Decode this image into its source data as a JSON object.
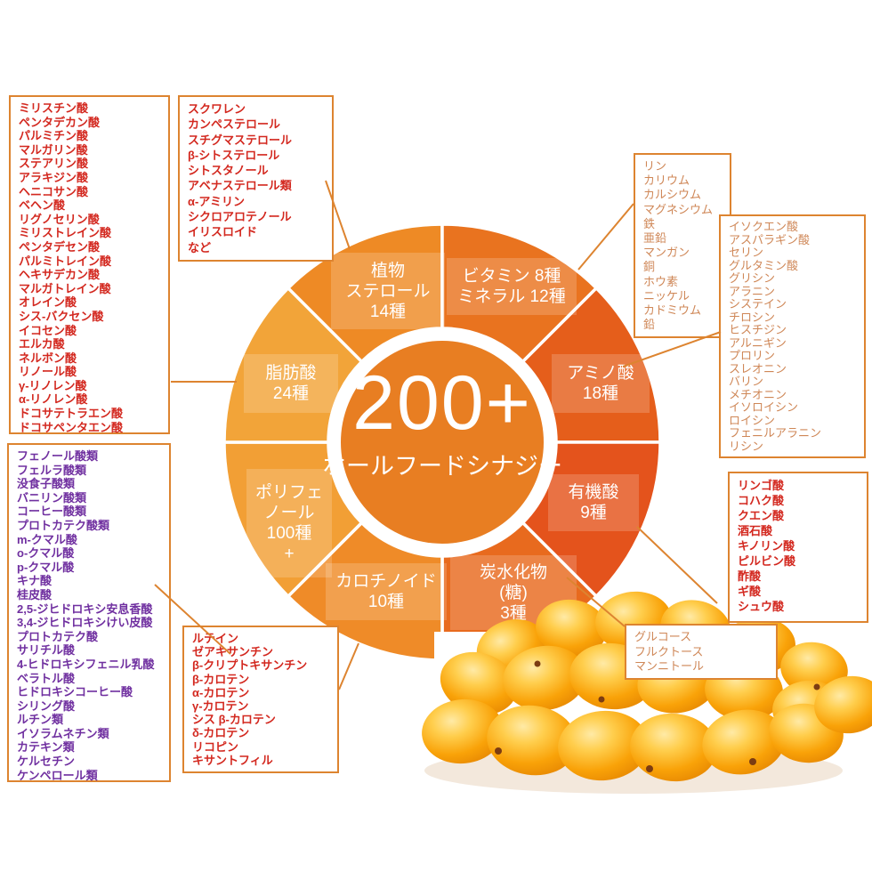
{
  "center": {
    "number": "200+",
    "subtitle": "ホールフードシナジー"
  },
  "wheel": {
    "center_color": "#e87e22",
    "segments": [
      {
        "id": "plant-sterols",
        "label": "植物\nステロール\n14種",
        "color": "#ee8a25"
      },
      {
        "id": "vitamins-minerals",
        "label": "ビタミン 8種\nミネラル 12種",
        "color": "#e9731f"
      },
      {
        "id": "amino-acids",
        "label": "アミノ酸\n18種",
        "color": "#e55e1b"
      },
      {
        "id": "organic-acids",
        "label": "有機酸\n9種",
        "color": "#e4531c"
      },
      {
        "id": "carbohydrates",
        "label": "炭水化物\n(糖)\n3種",
        "color": "#e86a1e"
      },
      {
        "id": "carotenoids",
        "label": "カロチノイド\n10種",
        "color": "#ef8b28"
      },
      {
        "id": "polyphenols",
        "label": "ポリフェ\nノール\n100種\n+",
        "color": "#f29f35"
      },
      {
        "id": "fatty-acids",
        "label": "脂肪酸\n24種",
        "color": "#f2a439"
      }
    ]
  },
  "boxes": {
    "fatty_acids": {
      "items": [
        "ミリスチン酸",
        "ペンタデカン酸",
        "パルミチン酸",
        "マルガリン酸",
        "ステアリン酸",
        "アラキジン酸",
        "ヘニコサン酸",
        "ベヘン酸",
        "リグノセリン酸",
        "ミリストレイン酸",
        "ペンタデセン酸",
        "パルミトレイン酸",
        "ヘキサデカン酸",
        "マルガトレイン酸",
        "オレイン酸",
        "シス-バクセン酸",
        "イコセン酸",
        "エルカ酸",
        "ネルボン酸",
        "リノール酸",
        "γ-リノレン酸",
        "α-リノレン酸",
        "ドコサテトラエン酸",
        "ドコサペンタエン酸"
      ]
    },
    "plant_sterols": {
      "items": [
        "スクワレン",
        "カンペステロール",
        "スチグマステロール",
        "β-シトステロール",
        "シトスタノール",
        "アベナステロール類",
        "α-アミリン",
        "シクロアロテノール",
        "イリスロイド",
        "など"
      ]
    },
    "minerals": {
      "items": [
        "リン",
        "カリウム",
        "カルシウム",
        "マグネシウム",
        "鉄",
        "亜鉛",
        "マンガン",
        "銅",
        "ホウ素",
        "ニッケル",
        "カドミウム",
        "鉛"
      ]
    },
    "amino_acids": {
      "items": [
        "イソクエン酸",
        "アスパラギン酸",
        "セリン",
        "グルタミン酸",
        "グリシン",
        "アラニン",
        "システイン",
        "チロシン",
        "ヒスチジン",
        "アルニギン",
        "プロリン",
        "スレオニン",
        "バリン",
        "メチオニン",
        "イソロイシン",
        "ロイシン",
        "フェニルアラニン",
        "リシン"
      ]
    },
    "organic_acids": {
      "items": [
        "リンゴ酸",
        "コハク酸",
        "クエン酸",
        "酒石酸",
        "キノリン酸",
        "ピルビン酸",
        "酢酸",
        "ギ酸",
        "シュウ酸"
      ]
    },
    "sugars": {
      "items": [
        "グルコース",
        "フルクトース",
        "マンニトール"
      ]
    },
    "polyphenols": {
      "items": [
        "フェノール酸類",
        "フェルラ酸類",
        "没食子酸類",
        "バニリン酸類",
        "コーヒー酸類",
        "プロトカテク酸類",
        "m-クマル酸",
        "o-クマル酸",
        "p-クマル酸",
        "キナ酸",
        "桂皮酸",
        "2,5-ジヒドロキシ安息香酸",
        "3,4-ジヒドロキシけい皮酸",
        "プロトカテク酸",
        "サリチル酸",
        "4-ヒドロキシフェニル乳酸",
        "ベラトル酸",
        "ヒドロキシコーヒー酸",
        "シリング酸",
        "ルチン類",
        "イソラムネチン類",
        "カテキン類",
        "ケルセチン",
        "ケンペロール類"
      ]
    },
    "carotenoids": {
      "items": [
        "ルテイン",
        "ゼアキサンチン",
        "β-クリプトキサンチン",
        "β-カロテン",
        "α-カロテン",
        "γ-カロテン",
        "シス β-カロテン",
        "δ-カロテン",
        "リコピン",
        "キサントフィル"
      ]
    }
  },
  "colors": {
    "list_red": "#d3281f",
    "list_purple": "#7030a0",
    "list_tan": "#cf8757",
    "box_border": "#dd8430",
    "berry": "#f9a208"
  }
}
